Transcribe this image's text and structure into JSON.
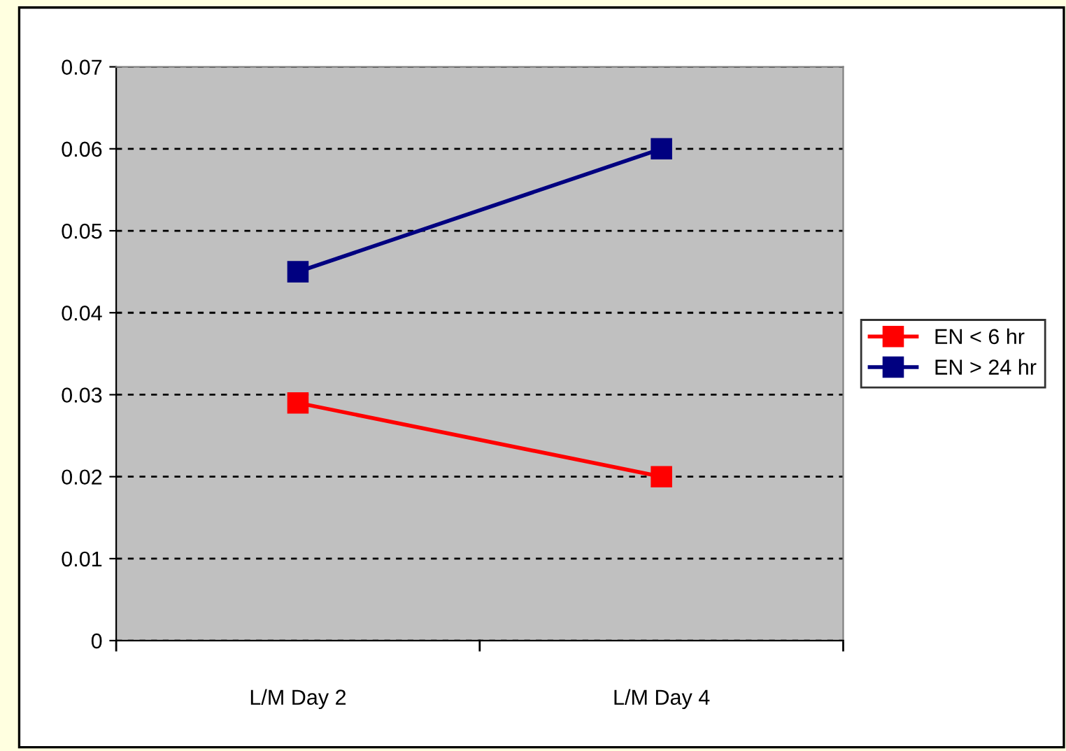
{
  "chart_data": {
    "type": "line",
    "categories": [
      "L/M Day 2",
      "L/M Day 4"
    ],
    "series": [
      {
        "name": "EN < 6 hr",
        "color": "#ff0000",
        "values": [
          0.029,
          0.02
        ]
      },
      {
        "name": "EN > 24 hr",
        "color": "#000080",
        "values": [
          0.045,
          0.06
        ]
      }
    ],
    "ylim": [
      0,
      0.07
    ],
    "yticks": [
      0,
      0.01,
      0.02,
      0.03,
      0.04,
      0.05,
      0.06,
      0.07
    ],
    "grid": "y",
    "legend": "right",
    "marker": "square",
    "line_style": "solid"
  }
}
